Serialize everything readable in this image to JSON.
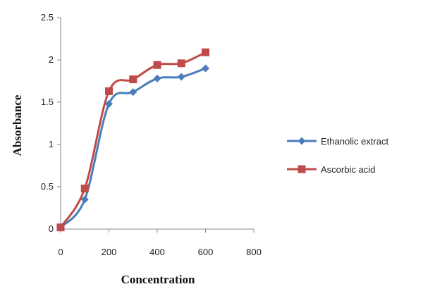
{
  "chart_data": {
    "type": "line",
    "title": "",
    "xlabel": "Concentration",
    "ylabel": "Absorbance",
    "xlim": [
      0,
      800
    ],
    "ylim": [
      0,
      2.5
    ],
    "x_ticks": [
      "0",
      "200",
      "400",
      "600",
      "800"
    ],
    "y_ticks": [
      "0",
      "0.5",
      "1",
      "1.5",
      "2",
      "2.5"
    ],
    "grid": false,
    "legend_position": "right",
    "series": [
      {
        "name": "Ethanolic extract",
        "color": "#4a7ebb",
        "marker": "diamond",
        "x": [
          0,
          100,
          200,
          300,
          400,
          500,
          600
        ],
        "y": [
          0.02,
          0.35,
          1.48,
          1.62,
          1.78,
          1.8,
          1.9
        ]
      },
      {
        "name": "Ascorbic acid",
        "color": "#be4b48",
        "marker": "square",
        "x": [
          0,
          100,
          200,
          300,
          400,
          500,
          600
        ],
        "y": [
          0.02,
          0.48,
          1.63,
          1.77,
          1.94,
          1.96,
          2.09
        ]
      }
    ]
  }
}
